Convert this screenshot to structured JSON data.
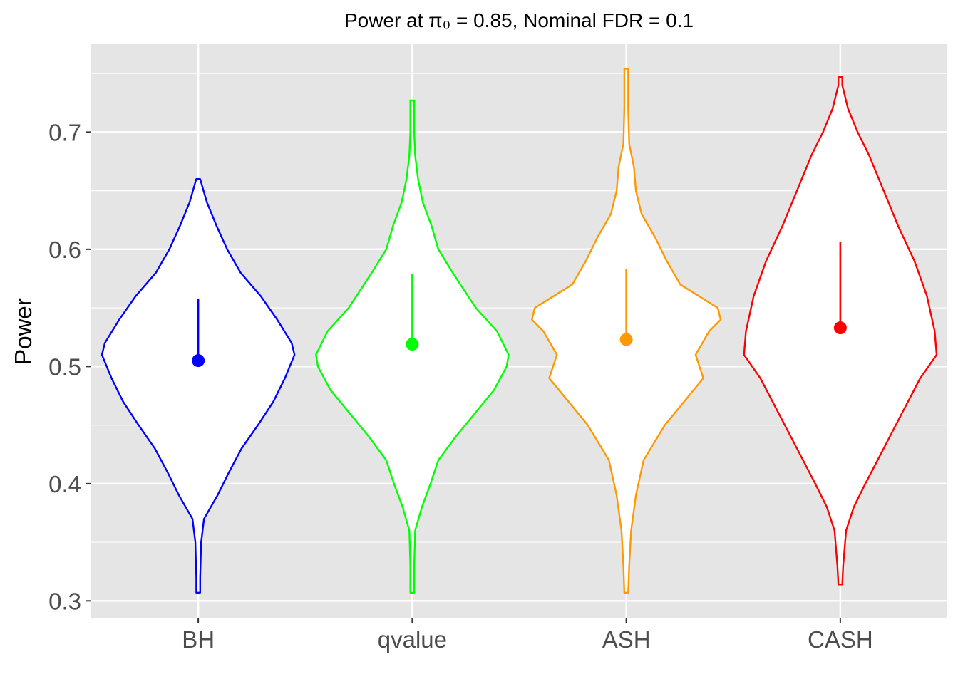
{
  "chart_data": {
    "type": "violin",
    "title": "Power at π₀ = 0.85, Nominal FDR = 0.1",
    "xlabel": "",
    "ylabel": "Power",
    "ylim": [
      0.285,
      0.775
    ],
    "yticks": [
      "0.3",
      "0.4",
      "0.5",
      "0.6",
      "0.7"
    ],
    "grid": true,
    "legend": "none",
    "categories": [
      "BH",
      "qvalue",
      "ASH",
      "CASH"
    ],
    "series": [
      {
        "category": "BH",
        "color": "#0000FF",
        "mean": 0.505,
        "upper": 0.558,
        "range": [
          0.307,
          0.66
        ],
        "density": [
          [
            0.307,
            0.02
          ],
          [
            0.32,
            0.02
          ],
          [
            0.35,
            0.03
          ],
          [
            0.37,
            0.06
          ],
          [
            0.39,
            0.2
          ],
          [
            0.41,
            0.32
          ],
          [
            0.43,
            0.45
          ],
          [
            0.45,
            0.62
          ],
          [
            0.47,
            0.78
          ],
          [
            0.49,
            0.9
          ],
          [
            0.51,
            1.0
          ],
          [
            0.52,
            0.97
          ],
          [
            0.54,
            0.82
          ],
          [
            0.56,
            0.65
          ],
          [
            0.58,
            0.44
          ],
          [
            0.6,
            0.3
          ],
          [
            0.62,
            0.19
          ],
          [
            0.64,
            0.09
          ],
          [
            0.66,
            0.02
          ]
        ]
      },
      {
        "category": "qvalue",
        "color": "#00FF00",
        "mean": 0.519,
        "upper": 0.579,
        "range": [
          0.307,
          0.727
        ],
        "density": [
          [
            0.307,
            0.02
          ],
          [
            0.33,
            0.02
          ],
          [
            0.36,
            0.03
          ],
          [
            0.38,
            0.1
          ],
          [
            0.4,
            0.19
          ],
          [
            0.42,
            0.27
          ],
          [
            0.44,
            0.45
          ],
          [
            0.46,
            0.65
          ],
          [
            0.48,
            0.85
          ],
          [
            0.5,
            0.98
          ],
          [
            0.51,
            1.0
          ],
          [
            0.53,
            0.88
          ],
          [
            0.55,
            0.66
          ],
          [
            0.58,
            0.42
          ],
          [
            0.6,
            0.27
          ],
          [
            0.62,
            0.2
          ],
          [
            0.64,
            0.11
          ],
          [
            0.66,
            0.06
          ],
          [
            0.68,
            0.03
          ],
          [
            0.7,
            0.02
          ],
          [
            0.727,
            0.02
          ]
        ]
      },
      {
        "category": "ASH",
        "color": "#FF9900",
        "mean": 0.523,
        "upper": 0.583,
        "range": [
          0.307,
          0.754
        ],
        "density": [
          [
            0.307,
            0.02
          ],
          [
            0.33,
            0.03
          ],
          [
            0.36,
            0.05
          ],
          [
            0.39,
            0.1
          ],
          [
            0.42,
            0.18
          ],
          [
            0.45,
            0.4
          ],
          [
            0.47,
            0.6
          ],
          [
            0.49,
            0.8
          ],
          [
            0.51,
            0.72
          ],
          [
            0.53,
            0.86
          ],
          [
            0.54,
            0.98
          ],
          [
            0.55,
            0.95
          ],
          [
            0.57,
            0.56
          ],
          [
            0.59,
            0.42
          ],
          [
            0.61,
            0.3
          ],
          [
            0.63,
            0.16
          ],
          [
            0.65,
            0.1
          ],
          [
            0.67,
            0.08
          ],
          [
            0.69,
            0.03
          ],
          [
            0.72,
            0.02
          ],
          [
            0.754,
            0.02
          ]
        ]
      },
      {
        "category": "CASH",
        "color": "#FF0000",
        "mean": 0.533,
        "upper": 0.606,
        "range": [
          0.314,
          0.747
        ],
        "density": [
          [
            0.314,
            0.02
          ],
          [
            0.33,
            0.03
          ],
          [
            0.36,
            0.06
          ],
          [
            0.38,
            0.14
          ],
          [
            0.4,
            0.26
          ],
          [
            0.43,
            0.45
          ],
          [
            0.46,
            0.64
          ],
          [
            0.49,
            0.83
          ],
          [
            0.51,
            1.0
          ],
          [
            0.53,
            0.98
          ],
          [
            0.56,
            0.9
          ],
          [
            0.59,
            0.77
          ],
          [
            0.62,
            0.6
          ],
          [
            0.65,
            0.45
          ],
          [
            0.68,
            0.3
          ],
          [
            0.7,
            0.18
          ],
          [
            0.72,
            0.08
          ],
          [
            0.74,
            0.02
          ],
          [
            0.747,
            0.02
          ]
        ]
      }
    ]
  }
}
